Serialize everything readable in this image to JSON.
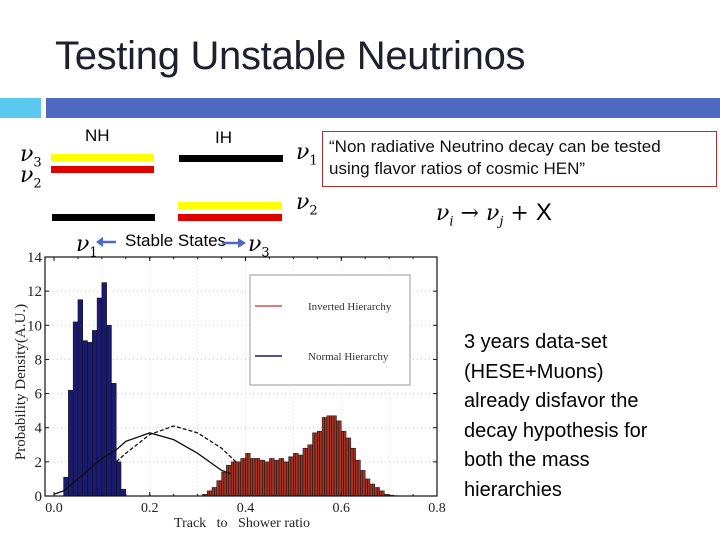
{
  "slide": {
    "title": "Testing Unstable Neutrinos",
    "accent_colors": {
      "light_bar": "#5bc8ef",
      "dark_bar": "#4f68c0"
    }
  },
  "mass_diagram": {
    "nh_label": "NH",
    "ih_label": "IH",
    "nu_symbol": "ν",
    "nh_levels": [
      {
        "state": "3",
        "color": "#ffff00"
      },
      {
        "state": "2",
        "color": "#e00000"
      },
      {
        "state": "1",
        "color": "#000000"
      }
    ],
    "ih_levels": [
      {
        "state": "1",
        "color": "#000000"
      },
      {
        "state": "2",
        "color": "#ffff00"
      },
      {
        "state": "3",
        "color": "#e00000"
      }
    ],
    "labels": {
      "nh_top_a": "3",
      "nh_top_b": "2",
      "ih_top": "1",
      "ih_bottom": "2",
      "stable_left": "1",
      "stable_right": "3"
    },
    "stable_states_label": "Stable States",
    "arrow_color": "#4f68c0"
  },
  "quote": {
    "text_line1": "“Non radiative Neutrino decay can be tested",
    "text_line2": "using flavor ratios of cosmic HEN”",
    "border_color": "#b03030"
  },
  "equation": {
    "nu": "ν",
    "i": "i",
    "arrow": "→",
    "j": "j",
    "plus": "+",
    "x": "X"
  },
  "conclusion": {
    "lines": [
      "3 years data-set",
      "(HESE+Muons)",
      "already disfavor the",
      "decay hypothesis for",
      "both the mass",
      "hierarchies"
    ]
  },
  "chart_data": {
    "type": "bar",
    "title": "",
    "xlabel": "Track   to   Shower ratio",
    "ylabel": "Probability Density(A.U.)",
    "xlim": [
      0.0,
      0.8
    ],
    "ylim": [
      0,
      14
    ],
    "xticks": [
      "0.0",
      "0.2",
      "0.4",
      "0.6",
      "0.8"
    ],
    "yticks": [
      "0",
      "2",
      "4",
      "6",
      "8",
      "10",
      "12",
      "14"
    ],
    "grid": true,
    "legend_position": "upper right",
    "series": [
      {
        "name": "Normal Hierarchy",
        "color": "#1a1a6e",
        "bin_width": 0.01,
        "x": [
          0.02,
          0.03,
          0.04,
          0.05,
          0.06,
          0.07,
          0.08,
          0.09,
          0.1,
          0.11,
          0.12,
          0.13,
          0.14
        ],
        "values": [
          1.1,
          6.2,
          10.2,
          11.5,
          9.1,
          9.0,
          9.7,
          11.6,
          12.5,
          10.0,
          6.6,
          2.0,
          0.4
        ]
      },
      {
        "name": "Inverted Hierarchy",
        "color": "#a43326",
        "bin_width": 0.005,
        "x": [
          0.31,
          0.315,
          0.32,
          0.325,
          0.33,
          0.335,
          0.34,
          0.345,
          0.35,
          0.355,
          0.36,
          0.365,
          0.37,
          0.375,
          0.38,
          0.385,
          0.39,
          0.395,
          0.4,
          0.405,
          0.41,
          0.415,
          0.42,
          0.425,
          0.43,
          0.435,
          0.44,
          0.445,
          0.45,
          0.455,
          0.46,
          0.465,
          0.47,
          0.475,
          0.48,
          0.485,
          0.49,
          0.495,
          0.5,
          0.505,
          0.51,
          0.515,
          0.52,
          0.525,
          0.53,
          0.535,
          0.54,
          0.545,
          0.55,
          0.555,
          0.56,
          0.565,
          0.57,
          0.575,
          0.58,
          0.585,
          0.59,
          0.595,
          0.6,
          0.605,
          0.61,
          0.615,
          0.62,
          0.625,
          0.63,
          0.635,
          0.64,
          0.645,
          0.65,
          0.655,
          0.66,
          0.665,
          0.67,
          0.675,
          0.68,
          0.685,
          0.69,
          0.695,
          0.7,
          0.705,
          0.71,
          0.715,
          0.72,
          0.725,
          0.73,
          0.735,
          0.74,
          0.745,
          0.75,
          0.755,
          0.76,
          0.765,
          0.77
        ],
        "values": [
          0.1,
          0.1,
          0.3,
          0.3,
          0.5,
          0.5,
          0.9,
          0.9,
          1.4,
          1.4,
          1.8,
          1.8,
          2.0,
          2.0,
          2.0,
          2.0,
          2.2,
          2.2,
          2.5,
          2.5,
          2.2,
          2.2,
          2.2,
          2.2,
          2.1,
          2.1,
          2.0,
          2.0,
          2.2,
          2.2,
          2.1,
          2.1,
          2.2,
          2.2,
          2.0,
          2.0,
          2.3,
          2.3,
          2.5,
          2.5,
          2.4,
          2.4,
          2.8,
          2.8,
          3.0,
          3.0,
          3.7,
          3.7,
          3.8,
          3.8,
          4.6,
          4.6,
          4.7,
          4.7,
          4.7,
          4.7,
          4.4,
          4.4,
          3.8,
          3.8,
          3.4,
          3.4,
          2.8,
          2.8,
          2.1,
          2.1,
          1.5,
          1.5,
          1.0,
          1.0,
          0.7,
          0.7,
          0.5,
          0.5,
          0.3,
          0.3,
          0.1,
          0.1,
          0.05,
          0.05,
          0.02,
          0.02,
          0.0,
          0.0,
          0.0,
          0.0,
          0.0,
          0.0,
          0.0,
          0.0,
          0.0,
          0.0,
          0.0
        ]
      }
    ],
    "curves": [
      {
        "name": "solid-curve",
        "style": "solid",
        "x": [
          0.0,
          0.02,
          0.05,
          0.1,
          0.13,
          0.15,
          0.2,
          0.25,
          0.3,
          0.35,
          0.37
        ],
        "y": [
          0.1,
          0.3,
          1.0,
          2.2,
          2.7,
          3.2,
          3.7,
          3.3,
          2.5,
          1.5,
          1.3
        ]
      },
      {
        "name": "dashed-curve",
        "style": "dashed",
        "x": [
          0.13,
          0.15,
          0.2,
          0.25,
          0.3,
          0.35,
          0.38
        ],
        "y": [
          2.0,
          2.5,
          3.6,
          4.1,
          3.7,
          2.8,
          2.0
        ]
      }
    ],
    "legend": [
      {
        "label": "Inverted Hierarchy",
        "color": "#d05050"
      },
      {
        "label": "Normal Hierarchy",
        "color": "#1a1a6e"
      }
    ]
  }
}
